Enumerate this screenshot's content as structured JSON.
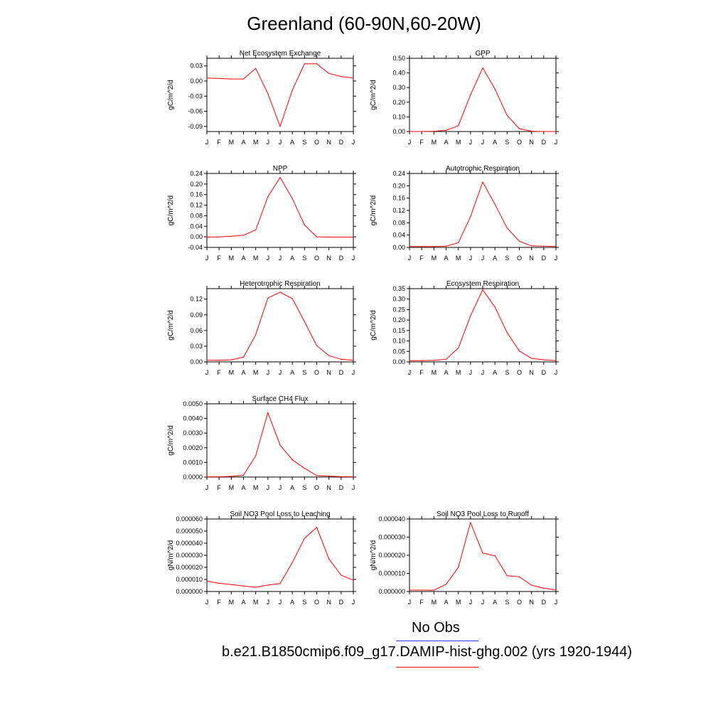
{
  "page": {
    "title": "Greenland (60-90N,60-20W)"
  },
  "legend": {
    "obs_label": "No Obs",
    "obs_color": "#2e3cff",
    "model_label": "b.e21.B1850cmip6.f09_g17.DAMIP-hist-ghg.002 (yrs 1920-1944)",
    "model_color": "#ff0000"
  },
  "chart_data": [
    {
      "type": "line",
      "title": "Net Ecosystem Exchange",
      "ylabel": "gC/m^2/d",
      "x": [
        "J",
        "F",
        "M",
        "A",
        "M",
        "J",
        "J",
        "A",
        "S",
        "O",
        "N",
        "D",
        "J"
      ],
      "ylim": [
        -0.1,
        0.045
      ],
      "yticks": [
        -0.09,
        -0.06,
        -0.03,
        0.0,
        0.03
      ],
      "ytick_labels": [
        "-0.09",
        "-0.06",
        "-0.03",
        "0.00",
        "0.03"
      ],
      "series": [
        {
          "color": "#ff0000",
          "values": [
            0.006,
            0.005,
            0.004,
            0.004,
            0.025,
            -0.025,
            -0.09,
            -0.018,
            0.034,
            0.034,
            0.015,
            0.009,
            0.006
          ]
        }
      ]
    },
    {
      "type": "line",
      "title": "GPP",
      "ylabel": "gC/m^2/d",
      "x": [
        "J",
        "F",
        "M",
        "A",
        "M",
        "J",
        "J",
        "A",
        "S",
        "O",
        "N",
        "D",
        "J"
      ],
      "ylim": [
        0,
        0.5
      ],
      "yticks": [
        0.0,
        0.1,
        0.2,
        0.3,
        0.4,
        0.5
      ],
      "ytick_labels": [
        "0.00",
        "0.10",
        "0.20",
        "0.30",
        "0.40",
        "0.50"
      ],
      "series": [
        {
          "color": "#ff0000",
          "values": [
            0.0,
            0.0,
            0.002,
            0.008,
            0.04,
            0.25,
            0.435,
            0.29,
            0.11,
            0.02,
            0.002,
            0.0,
            0.0
          ]
        }
      ]
    },
    {
      "type": "line",
      "title": "NPP",
      "ylabel": "gC/m^2/d",
      "x": [
        "J",
        "F",
        "M",
        "A",
        "M",
        "J",
        "J",
        "A",
        "S",
        "O",
        "N",
        "D",
        "J"
      ],
      "ylim": [
        -0.04,
        0.24
      ],
      "yticks": [
        -0.04,
        0.0,
        0.04,
        0.08,
        0.12,
        0.16,
        0.2,
        0.24
      ],
      "ytick_labels": [
        "-0.04",
        "0.00",
        "0.04",
        "0.08",
        "0.12",
        "0.16",
        "0.20",
        "0.24"
      ],
      "series": [
        {
          "color": "#ff0000",
          "values": [
            -0.001,
            0.0,
            0.002,
            0.006,
            0.026,
            0.152,
            0.225,
            0.145,
            0.045,
            0.0,
            -0.001,
            -0.001,
            -0.001
          ]
        }
      ]
    },
    {
      "type": "line",
      "title": "Autotrophic Respiration",
      "ylabel": "gC/m^2/d",
      "x": [
        "J",
        "F",
        "M",
        "A",
        "M",
        "J",
        "J",
        "A",
        "S",
        "O",
        "N",
        "D",
        "J"
      ],
      "ylim": [
        0,
        0.24
      ],
      "yticks": [
        0.0,
        0.04,
        0.08,
        0.12,
        0.16,
        0.2,
        0.24
      ],
      "ytick_labels": [
        "0.00",
        "0.04",
        "0.08",
        "0.12",
        "0.16",
        "0.20",
        "0.24"
      ],
      "series": [
        {
          "color": "#ff0000",
          "values": [
            0.003,
            0.003,
            0.003,
            0.004,
            0.015,
            0.1,
            0.212,
            0.14,
            0.063,
            0.02,
            0.005,
            0.004,
            0.003
          ]
        }
      ]
    },
    {
      "type": "line",
      "title": "Heterotrophic Respiration",
      "ylabel": "gC/m^2/d",
      "x": [
        "J",
        "F",
        "M",
        "A",
        "M",
        "J",
        "J",
        "A",
        "S",
        "O",
        "N",
        "D",
        "J"
      ],
      "ylim": [
        0,
        0.14
      ],
      "yticks": [
        0.0,
        0.03,
        0.06,
        0.09,
        0.12
      ],
      "ytick_labels": [
        "0.00",
        "0.03",
        "0.06",
        "0.09",
        "0.12"
      ],
      "series": [
        {
          "color": "#ff0000",
          "values": [
            0.003,
            0.003,
            0.004,
            0.009,
            0.052,
            0.122,
            0.133,
            0.121,
            0.077,
            0.031,
            0.012,
            0.005,
            0.003
          ]
        }
      ]
    },
    {
      "type": "line",
      "title": "Ecosystem Respiration",
      "ylabel": "gC/m^2/d",
      "x": [
        "J",
        "F",
        "M",
        "A",
        "M",
        "J",
        "J",
        "A",
        "S",
        "O",
        "N",
        "D",
        "J"
      ],
      "ylim": [
        0,
        0.35
      ],
      "yticks": [
        0.0,
        0.05,
        0.1,
        0.15,
        0.2,
        0.25,
        0.3,
        0.35
      ],
      "ytick_labels": [
        "0.00",
        "0.05",
        "0.10",
        "0.15",
        "0.20",
        "0.25",
        "0.30",
        "0.35"
      ],
      "series": [
        {
          "color": "#ff0000",
          "values": [
            0.006,
            0.006,
            0.007,
            0.013,
            0.066,
            0.22,
            0.345,
            0.262,
            0.14,
            0.052,
            0.017,
            0.01,
            0.006
          ]
        }
      ]
    },
    {
      "type": "line",
      "title": "Surface CH4 Flux",
      "ylabel": "gC/m^2/d",
      "x": [
        "J",
        "F",
        "M",
        "A",
        "M",
        "J",
        "J",
        "A",
        "S",
        "O",
        "N",
        "D",
        "J"
      ],
      "ylim": [
        0,
        0.005
      ],
      "yticks": [
        0.0,
        0.001,
        0.002,
        0.003,
        0.004,
        0.005
      ],
      "ytick_labels": [
        "0.0000",
        "0.0010",
        "0.0020",
        "0.0030",
        "0.0040",
        "0.0050"
      ],
      "series": [
        {
          "color": "#ff0000",
          "values": [
            2e-05,
            2e-05,
            5e-05,
            0.00012,
            0.00145,
            0.0044,
            0.00218,
            0.00118,
            0.0006,
            0.0001,
            6e-05,
            3e-05,
            2e-05
          ]
        }
      ]
    },
    {
      "type": "line",
      "title": "Soil NO3 Pool Loss to Leaching",
      "ylabel": "gN/m^2/d",
      "x": [
        "J",
        "F",
        "M",
        "A",
        "M",
        "J",
        "J",
        "A",
        "S",
        "O",
        "N",
        "D",
        "J"
      ],
      "ylim": [
        0,
        6e-05
      ],
      "yticks": [
        0.0,
        1e-05,
        2e-05,
        3e-05,
        4e-05,
        5e-05,
        6e-05
      ],
      "ytick_labels": [
        "0.000000",
        "0.000010",
        "0.000020",
        "0.000030",
        "0.000040",
        "0.000050",
        "0.000060"
      ],
      "series": [
        {
          "color": "#ff0000",
          "values": [
            8.5e-06,
            6.8e-06,
            5.7e-06,
            4.6e-06,
            3.5e-06,
            5.3e-06,
            6.6e-06,
            2.4e-05,
            4.4e-05,
            5.3e-05,
            2.7e-05,
            1.35e-05,
            9.3e-06
          ]
        }
      ]
    },
    {
      "type": "line",
      "title": "Soil NO3 Pool Loss to Runoff",
      "ylabel": "gN/m^2/d",
      "x": [
        "J",
        "F",
        "M",
        "A",
        "M",
        "J",
        "J",
        "A",
        "S",
        "O",
        "N",
        "D",
        "J"
      ],
      "ylim": [
        0,
        4e-05
      ],
      "yticks": [
        0.0,
        1e-05,
        2e-05,
        3e-05,
        4e-05
      ],
      "ytick_labels": [
        "0.000000",
        "0.000010",
        "0.000020",
        "0.000030",
        "0.000040"
      ],
      "series": [
        {
          "color": "#ff0000",
          "values": [
            8e-07,
            8e-07,
            7e-07,
            4e-06,
            1.33e-05,
            3.8e-05,
            2.12e-05,
            1.97e-05,
            8.7e-06,
            8.1e-06,
            3.5e-06,
            1.8e-06,
            9e-07
          ]
        }
      ]
    }
  ]
}
